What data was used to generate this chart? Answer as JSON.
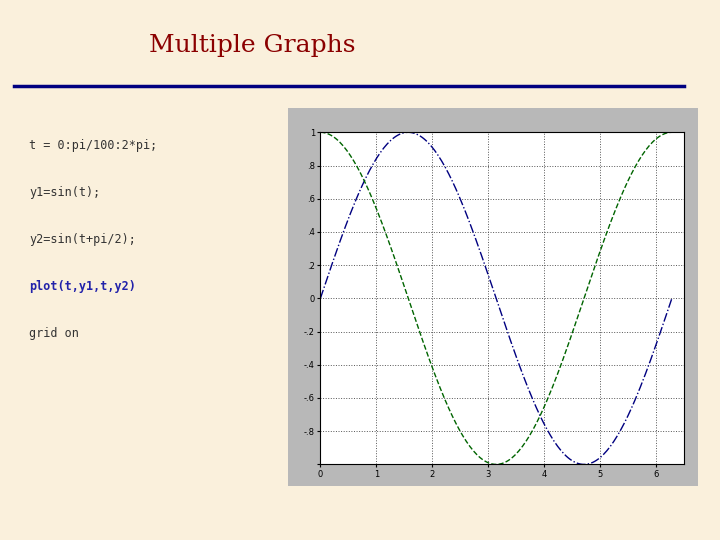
{
  "title": "Multiple Graphs",
  "title_color": "#8B0000",
  "title_fontsize": 18,
  "slide_bg": "#FAF0DC",
  "divider_color": "#000080",
  "code_lines": [
    {
      "text": "t = 0:pi/100:2*pi;",
      "bold": false,
      "color": "#333333"
    },
    {
      "text": "y1=sin(t);",
      "bold": false,
      "color": "#333333"
    },
    {
      "text": "y2=sin(t+pi/2);",
      "bold": false,
      "color": "#333333"
    },
    {
      "text": "plot(t,y1,t,y2)",
      "bold": true,
      "color": "#2222AA"
    },
    {
      "text": "grid on",
      "bold": false,
      "color": "#333333"
    }
  ],
  "plot_outer_bg": "#B8B8B8",
  "inner_plot_bg": "#FFFFFF",
  "line1_color": "#000080",
  "line2_color": "#006400",
  "line1_style": "-.",
  "line2_style": "--",
  "xlim": [
    0,
    6.5
  ],
  "ylim": [
    -1,
    1
  ],
  "xticks": [
    0,
    1,
    2,
    3,
    4,
    5,
    6
  ],
  "ytick_labels": [
    "",
    "-0.8",
    "-0.6",
    "-0.4",
    "-0.2",
    "0",
    "0.2",
    "0.4",
    "0.6",
    "0.8",
    "1"
  ],
  "yticks": [
    -1,
    -0.8,
    -0.6,
    -0.4,
    -0.2,
    0,
    0.2,
    0.4,
    0.6,
    0.8,
    1
  ],
  "grid_color": "#555555",
  "grid_linestyle": ":",
  "grid_linewidth": 0.7,
  "code_fontsize": 8.5,
  "tick_fontsize": 6,
  "code_font": "monospace"
}
